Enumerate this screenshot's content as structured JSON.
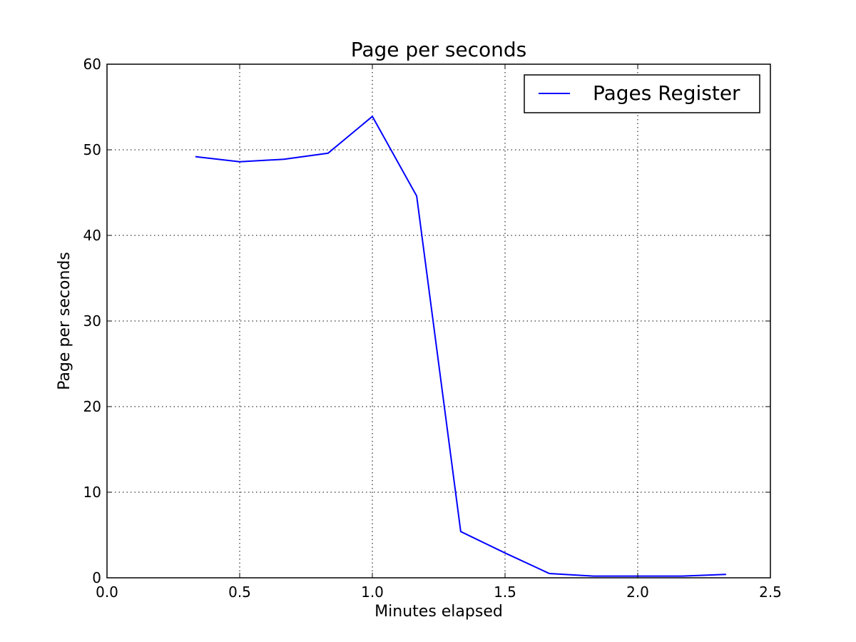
{
  "chart_data": {
    "type": "line",
    "title": "Page per seconds",
    "xlabel": "Minutes elapsed",
    "ylabel": "Page per seconds",
    "xlim": [
      0.0,
      2.5
    ],
    "ylim": [
      0,
      60
    ],
    "xticks": [
      0.0,
      0.5,
      1.0,
      1.5,
      2.0,
      2.5
    ],
    "xtick_labels": [
      "0.0",
      "0.5",
      "1.0",
      "1.5",
      "2.0",
      "2.5"
    ],
    "yticks": [
      0,
      10,
      20,
      30,
      40,
      50,
      60
    ],
    "ytick_labels": [
      "0",
      "10",
      "20",
      "30",
      "40",
      "50",
      "60"
    ],
    "grid": true,
    "legend_position": "top-right",
    "series": [
      {
        "name": "Pages Register",
        "color": "#0000ff",
        "x": [
          0.333,
          0.5,
          0.667,
          0.833,
          1.0,
          1.167,
          1.333,
          1.5,
          1.667,
          1.833,
          2.0,
          2.167,
          2.333
        ],
        "y": [
          49.2,
          48.6,
          48.9,
          49.6,
          53.9,
          44.6,
          5.4,
          2.9,
          0.5,
          0.2,
          0.2,
          0.2,
          0.4
        ]
      }
    ]
  }
}
